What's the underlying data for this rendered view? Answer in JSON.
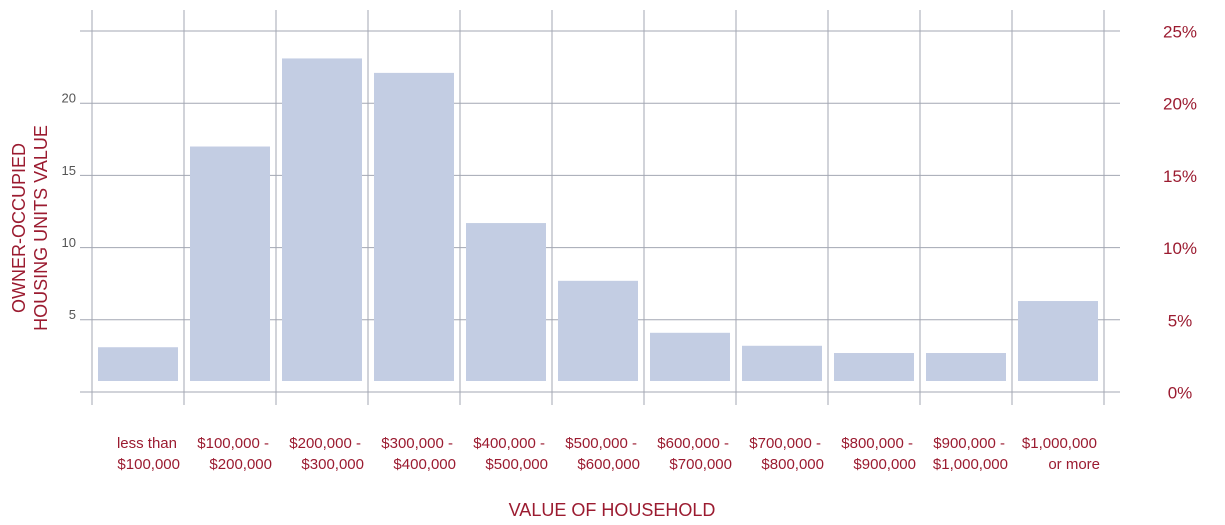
{
  "chart_data": {
    "type": "bar",
    "categories": [
      [
        "less than",
        "$100,000"
      ],
      [
        "$100,000 -",
        "$200,000"
      ],
      [
        "$200,000 -",
        "$300,000"
      ],
      [
        "$300,000 -",
        "$400,000"
      ],
      [
        "$400,000 -",
        "$500,000"
      ],
      [
        "$500,000 -",
        "$600,000"
      ],
      [
        "$600,000 -",
        "$700,000"
      ],
      [
        "$700,000 -",
        "$800,000"
      ],
      [
        "$800,000 -",
        "$900,000"
      ],
      [
        "$900,000 -",
        "$1,000,000"
      ],
      [
        "$1,000,000",
        "or more"
      ]
    ],
    "values": [
      3.1,
      17.0,
      23.1,
      22.1,
      11.7,
      7.7,
      4.1,
      3.2,
      2.7,
      2.7,
      6.3
    ],
    "color": "#c3cde3",
    "xlabel": "VALUE OF HOUSEHOLD",
    "ylabel": [
      "OWNER-OCCUPIED",
      "HOUSING UNITS  VALUE"
    ],
    "ylim": [
      0,
      25
    ],
    "yticks": [
      5,
      10,
      15,
      20
    ],
    "y2lim": [
      0,
      25
    ],
    "y2ticks": [
      {
        "value": 0,
        "label": "0%"
      },
      {
        "value": 5,
        "label": "5%"
      },
      {
        "value": 10,
        "label": "10%"
      },
      {
        "value": 15,
        "label": "15%"
      },
      {
        "value": 20,
        "label": "20%"
      },
      {
        "value": 25,
        "label": "25%"
      }
    ],
    "grid": true
  }
}
